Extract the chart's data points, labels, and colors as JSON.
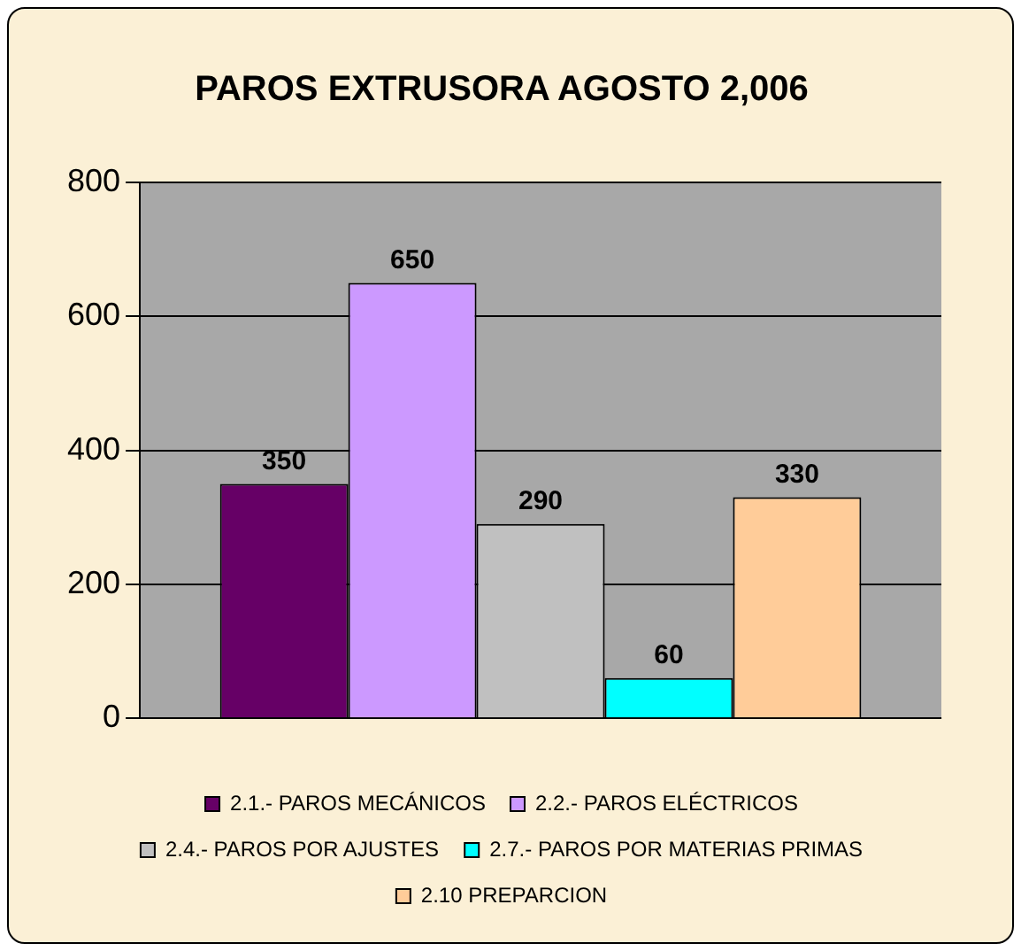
{
  "chart_data": {
    "type": "bar",
    "title": "PAROS EXTRUSORA AGOSTO 2,006",
    "categories": [
      null
    ],
    "series": [
      {
        "name": "2.1.- PAROS MECÁNICOS",
        "color": "#660066",
        "values": [
          350
        ]
      },
      {
        "name": "2.2.- PAROS ELÉCTRICOS",
        "color": "#cc99ff",
        "values": [
          650
        ]
      },
      {
        "name": "2.4.- PAROS POR AJUSTES",
        "color": "#c0c0c0",
        "values": [
          290
        ]
      },
      {
        "name": "2.7.- PAROS POR MATERIAS PRIMAS",
        "color": "#00ffff",
        "values": [
          60
        ]
      },
      {
        "name": "2.10 PREPARCION",
        "color": "#ffcc99",
        "values": [
          330
        ]
      }
    ],
    "ylim": [
      0,
      800
    ],
    "yticks": [
      0,
      200,
      400,
      600,
      800
    ],
    "grid": "y",
    "legend": "bottom",
    "data_labels": true
  }
}
